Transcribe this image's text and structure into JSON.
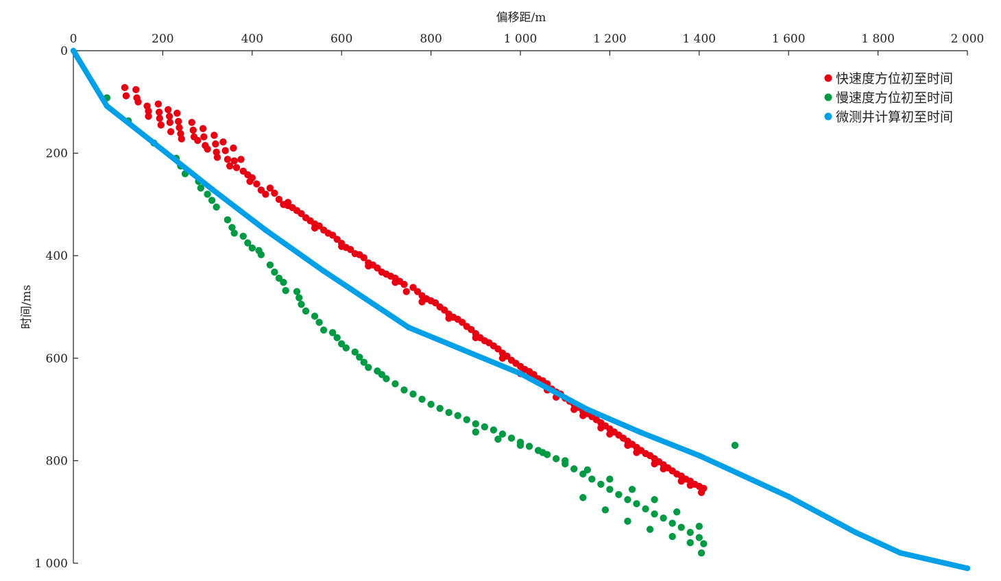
{
  "chart_data": {
    "type": "scatter",
    "title": "",
    "xlabel": "偏移距/m",
    "ylabel": "时间/ms",
    "x_axis_position": "top",
    "y_axis_inverted": true,
    "xlim": [
      0,
      2000
    ],
    "ylim": [
      0,
      1000
    ],
    "x_ticks": [
      0,
      200,
      400,
      600,
      800,
      1000,
      1200,
      1400,
      1600,
      1800,
      2000
    ],
    "x_tick_labels": [
      "0",
      "200",
      "400",
      "600",
      "800",
      "1 000",
      "1 200",
      "1 400",
      "1 600",
      "1 800",
      "2 000"
    ],
    "y_ticks": [
      0,
      200,
      400,
      600,
      800,
      1000
    ],
    "y_tick_labels": [
      "0",
      "200",
      "400",
      "600",
      "800",
      "1 000"
    ],
    "grid": false,
    "legend_position": "top-right",
    "series": [
      {
        "name": "快速度方位初至时间",
        "kind": "scatter",
        "color": "#e60012",
        "points": [
          [
            115,
            72
          ],
          [
            118,
            88
          ],
          [
            140,
            76
          ],
          [
            142,
            92
          ],
          [
            145,
            100
          ],
          [
            165,
            108
          ],
          [
            168,
            118
          ],
          [
            168,
            128
          ],
          [
            190,
            104
          ],
          [
            192,
            120
          ],
          [
            193,
            132
          ],
          [
            196,
            145
          ],
          [
            212,
            115
          ],
          [
            215,
            128
          ],
          [
            216,
            140
          ],
          [
            218,
            158
          ],
          [
            232,
            122
          ],
          [
            235,
            138
          ],
          [
            237,
            150
          ],
          [
            240,
            162
          ],
          [
            242,
            172
          ],
          [
            265,
            140
          ],
          [
            268,
            155
          ],
          [
            270,
            168
          ],
          [
            278,
            175
          ],
          [
            290,
            152
          ],
          [
            292,
            168
          ],
          [
            295,
            185
          ],
          [
            300,
            192
          ],
          [
            315,
            165
          ],
          [
            318,
            182
          ],
          [
            320,
            198
          ],
          [
            322,
            208
          ],
          [
            335,
            178
          ],
          [
            340,
            195
          ],
          [
            345,
            212
          ],
          [
            350,
            225
          ],
          [
            358,
            190
          ],
          [
            360,
            215
          ],
          [
            365,
            228
          ],
          [
            375,
            212
          ],
          [
            380,
            235
          ],
          [
            390,
            242
          ],
          [
            395,
            255
          ],
          [
            400,
            248
          ],
          [
            410,
            260
          ],
          [
            420,
            272
          ],
          [
            430,
            280
          ],
          [
            440,
            268
          ],
          [
            450,
            278
          ],
          [
            460,
            290
          ],
          [
            470,
            300
          ],
          [
            480,
            296
          ],
          [
            490,
            306
          ],
          [
            500,
            312
          ],
          [
            510,
            318
          ],
          [
            520,
            326
          ],
          [
            530,
            332
          ],
          [
            540,
            338
          ],
          [
            550,
            342
          ],
          [
            560,
            350
          ],
          [
            570,
            356
          ],
          [
            580,
            360
          ],
          [
            590,
            368
          ],
          [
            600,
            376
          ],
          [
            610,
            384
          ],
          [
            620,
            388
          ],
          [
            630,
            396
          ],
          [
            640,
            398
          ],
          [
            650,
            404
          ],
          [
            660,
            414
          ],
          [
            670,
            418
          ],
          [
            680,
            424
          ],
          [
            690,
            432
          ],
          [
            700,
            436
          ],
          [
            710,
            440
          ],
          [
            720,
            444
          ],
          [
            730,
            450
          ],
          [
            740,
            456
          ],
          [
            745,
            470
          ],
          [
            760,
            462
          ],
          [
            770,
            470
          ],
          [
            780,
            478
          ],
          [
            790,
            484
          ],
          [
            800,
            488
          ],
          [
            810,
            492
          ],
          [
            820,
            500
          ],
          [
            830,
            506
          ],
          [
            840,
            514
          ],
          [
            850,
            520
          ],
          [
            860,
            524
          ],
          [
            870,
            530
          ],
          [
            880,
            538
          ],
          [
            890,
            544
          ],
          [
            900,
            552
          ],
          [
            910,
            560
          ],
          [
            920,
            566
          ],
          [
            930,
            570
          ],
          [
            940,
            576
          ],
          [
            950,
            582
          ],
          [
            960,
            590
          ],
          [
            970,
            596
          ],
          [
            980,
            604
          ],
          [
            990,
            610
          ],
          [
            1000,
            616
          ],
          [
            1010,
            622
          ],
          [
            1020,
            626
          ],
          [
            1030,
            632
          ],
          [
            1040,
            640
          ],
          [
            1050,
            644
          ],
          [
            1060,
            650
          ],
          [
            1070,
            660
          ],
          [
            1080,
            666
          ],
          [
            1090,
            670
          ],
          [
            1100,
            678
          ],
          [
            1110,
            684
          ],
          [
            1120,
            690
          ],
          [
            1130,
            696
          ],
          [
            1140,
            704
          ],
          [
            1150,
            708
          ],
          [
            1160,
            714
          ],
          [
            1170,
            720
          ],
          [
            1180,
            726
          ],
          [
            1190,
            732
          ],
          [
            1200,
            738
          ],
          [
            1210,
            744
          ],
          [
            1220,
            750
          ],
          [
            1230,
            756
          ],
          [
            1240,
            762
          ],
          [
            1250,
            768
          ],
          [
            1260,
            774
          ],
          [
            1270,
            780
          ],
          [
            1280,
            786
          ],
          [
            1290,
            790
          ],
          [
            1300,
            796
          ],
          [
            1310,
            802
          ],
          [
            1320,
            808
          ],
          [
            1330,
            814
          ],
          [
            1340,
            820
          ],
          [
            1350,
            826
          ],
          [
            1360,
            830
          ],
          [
            1370,
            836
          ],
          [
            1380,
            840
          ],
          [
            1390,
            846
          ],
          [
            1400,
            850
          ],
          [
            1410,
            854
          ],
          [
            480,
            302
          ],
          [
            540,
            346
          ],
          [
            600,
            382
          ],
          [
            660,
            420
          ],
          [
            720,
            452
          ],
          [
            780,
            490
          ],
          [
            840,
            522
          ],
          [
            900,
            560
          ],
          [
            960,
            600
          ],
          [
            1020,
            636
          ],
          [
            1080,
            676
          ],
          [
            1140,
            712
          ],
          [
            1200,
            748
          ],
          [
            1260,
            784
          ],
          [
            1320,
            816
          ],
          [
            1380,
            848
          ],
          [
            1405,
            862
          ],
          [
            1000,
            630
          ],
          [
            1060,
            662
          ],
          [
            1120,
            700
          ],
          [
            1180,
            736
          ],
          [
            1240,
            770
          ],
          [
            1300,
            806
          ],
          [
            1360,
            840
          ]
        ]
      },
      {
        "name": "慢速度方位初至时间",
        "kind": "scatter",
        "color": "#009944",
        "points": [
          [
            75,
            92
          ],
          [
            123,
            137
          ],
          [
            180,
            180
          ],
          [
            230,
            210
          ],
          [
            240,
            225
          ],
          [
            250,
            240
          ],
          [
            280,
            255
          ],
          [
            285,
            268
          ],
          [
            300,
            280
          ],
          [
            310,
            292
          ],
          [
            320,
            305
          ],
          [
            345,
            330
          ],
          [
            355,
            345
          ],
          [
            360,
            356
          ],
          [
            380,
            362
          ],
          [
            390,
            375
          ],
          [
            400,
            385
          ],
          [
            415,
            390
          ],
          [
            420,
            398
          ],
          [
            440,
            418
          ],
          [
            450,
            432
          ],
          [
            460,
            444
          ],
          [
            470,
            452
          ],
          [
            475,
            468
          ],
          [
            500,
            470
          ],
          [
            505,
            482
          ],
          [
            510,
            495
          ],
          [
            520,
            508
          ],
          [
            540,
            518
          ],
          [
            550,
            530
          ],
          [
            560,
            545
          ],
          [
            580,
            550
          ],
          [
            590,
            560
          ],
          [
            600,
            572
          ],
          [
            610,
            580
          ],
          [
            630,
            588
          ],
          [
            640,
            598
          ],
          [
            650,
            608
          ],
          [
            660,
            618
          ],
          [
            680,
            625
          ],
          [
            690,
            632
          ],
          [
            700,
            640
          ],
          [
            720,
            650
          ],
          [
            740,
            662
          ],
          [
            760,
            670
          ],
          [
            780,
            680
          ],
          [
            800,
            690
          ],
          [
            820,
            698
          ],
          [
            840,
            706
          ],
          [
            860,
            712
          ],
          [
            880,
            720
          ],
          [
            900,
            728
          ],
          [
            920,
            734
          ],
          [
            940,
            740
          ],
          [
            960,
            748
          ],
          [
            980,
            756
          ],
          [
            1000,
            764
          ],
          [
            1020,
            772
          ],
          [
            1040,
            780
          ],
          [
            1060,
            788
          ],
          [
            1080,
            796
          ],
          [
            1100,
            806
          ],
          [
            1120,
            816
          ],
          [
            1140,
            826
          ],
          [
            1160,
            836
          ],
          [
            1180,
            846
          ],
          [
            1200,
            856
          ],
          [
            1220,
            866
          ],
          [
            1240,
            876
          ],
          [
            1260,
            884
          ],
          [
            1280,
            894
          ],
          [
            1300,
            904
          ],
          [
            1320,
            912
          ],
          [
            1340,
            922
          ],
          [
            1360,
            930
          ],
          [
            1380,
            940
          ],
          [
            1400,
            950
          ],
          [
            1410,
            962
          ],
          [
            900,
            744
          ],
          [
            950,
            758
          ],
          [
            1000,
            770
          ],
          [
            1050,
            784
          ],
          [
            1100,
            800
          ],
          [
            1150,
            818
          ],
          [
            1200,
            836
          ],
          [
            1250,
            856
          ],
          [
            1300,
            876
          ],
          [
            1350,
            900
          ],
          [
            1400,
            928
          ],
          [
            1405,
            980
          ],
          [
            1380,
            960
          ],
          [
            1340,
            948
          ],
          [
            1290,
            934
          ],
          [
            1240,
            918
          ],
          [
            1190,
            896
          ],
          [
            1140,
            872
          ],
          [
            1480,
            770
          ]
        ]
      },
      {
        "name": "微测井计算初至时间",
        "kind": "line",
        "color": "#00a0e9",
        "points": [
          [
            0,
            0
          ],
          [
            75,
            108
          ],
          [
            180,
            180
          ],
          [
            310,
            270
          ],
          [
            430,
            350
          ],
          [
            560,
            430
          ],
          [
            750,
            540
          ],
          [
            1000,
            630
          ],
          [
            1150,
            700
          ],
          [
            1270,
            745
          ],
          [
            1400,
            790
          ],
          [
            1600,
            870
          ],
          [
            1750,
            940
          ],
          [
            1850,
            980
          ],
          [
            2000,
            1010
          ]
        ]
      }
    ]
  }
}
